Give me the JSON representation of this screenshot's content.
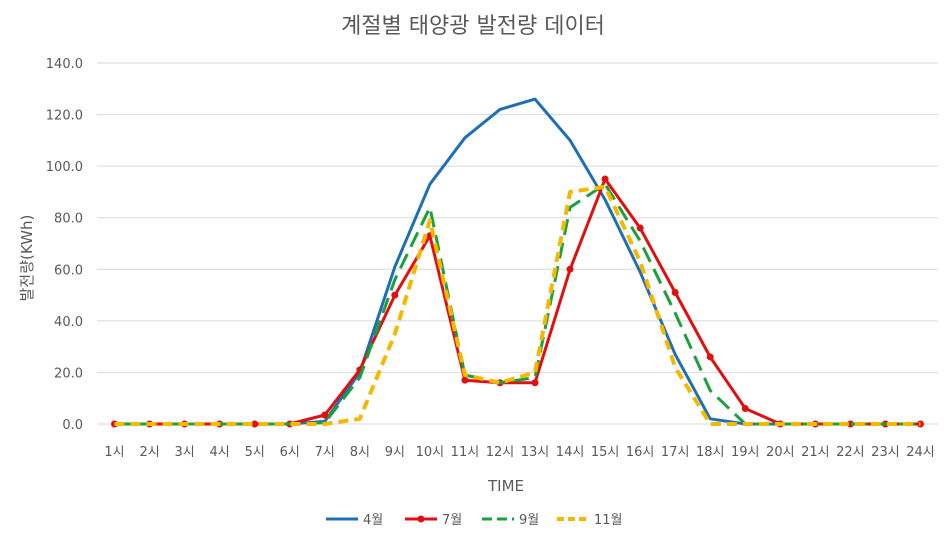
{
  "chart_data": {
    "type": "line",
    "title": "계절별 태양광 발전량 데이터",
    "xlabel": "TIME",
    "ylabel": "발전량(KWh)",
    "ylim": [
      0,
      140
    ],
    "yticks": [
      "0.0",
      "20.0",
      "40.0",
      "60.0",
      "80.0",
      "100.0",
      "120.0",
      "140.0"
    ],
    "grid": true,
    "legend": "bottom",
    "categories": [
      "1시",
      "2시",
      "3시",
      "4시",
      "5시",
      "6시",
      "7시",
      "8시",
      "9시",
      "10시",
      "11시",
      "12시",
      "13시",
      "14시",
      "15시",
      "16시",
      "17시",
      "18시",
      "19시",
      "20시",
      "21시",
      "22시",
      "23시",
      "24시"
    ],
    "series": [
      {
        "name": "4월",
        "color": "#1f6fb4",
        "style": "solid",
        "values": [
          0,
          0,
          0,
          0,
          0,
          0,
          1,
          20,
          61,
          93,
          111,
          122,
          126,
          110,
          87,
          59,
          27,
          2,
          0,
          0,
          0,
          0,
          0,
          0
        ]
      },
      {
        "name": "7월",
        "color": "#e01010",
        "style": "solid-markers",
        "values": [
          0,
          0,
          0,
          0,
          0,
          0,
          3.5,
          21,
          50,
          73,
          17,
          16,
          16,
          60,
          95,
          76,
          51,
          26,
          6,
          0,
          0,
          0,
          0,
          0
        ]
      },
      {
        "name": "9월",
        "color": "#1aa03c",
        "style": "dash",
        "values": [
          0,
          0,
          0,
          0,
          0,
          0,
          0.5,
          18,
          56,
          84,
          19,
          16,
          18,
          84,
          93,
          71,
          43,
          13,
          0,
          0,
          0,
          0,
          0,
          0
        ]
      },
      {
        "name": "11월",
        "color": "#f5b800",
        "style": "dash-thick",
        "values": [
          0,
          0,
          0,
          0,
          0,
          0,
          0,
          2,
          35,
          79,
          19,
          16,
          20,
          90,
          92,
          63,
          22,
          0,
          0,
          0,
          0,
          0,
          0,
          0
        ]
      }
    ]
  }
}
